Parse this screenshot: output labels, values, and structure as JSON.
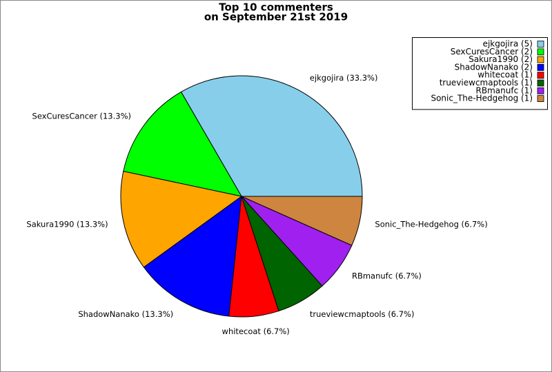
{
  "chart_data": {
    "type": "pie",
    "title": "Top 10 commenters",
    "subtitle": "on September 21st 2019",
    "categories": [
      "ejkgojira",
      "SexCuresCancer",
      "Sakura1990",
      "ShadowNanako",
      "whitecoat",
      "trueviewcmaptools",
      "RBmanufc",
      "Sonic_The-Hedgehog"
    ],
    "values": [
      5,
      2,
      2,
      2,
      1,
      1,
      1,
      1
    ],
    "value_labels": [
      "ejkgojira (33.3%)",
      "SexCuresCancer (13.3%)",
      "Sakura1990 (13.3%)",
      "ShadowNanako (13.3%)",
      "whitecoat (6.7%)",
      "trueviewcmaptools (6.7%)",
      "RBmanufc (6.7%)",
      "Sonic_The-Hedgehog (6.7%)"
    ],
    "legend_labels": [
      "ejkgojira (5)",
      "SexCuresCancer (2)",
      "Sakura1990 (2)",
      "ShadowNanako (2)",
      "whitecoat (1)",
      "trueviewcmaptools (1)",
      "RBmanufc (1)",
      "Sonic_The-Hedgehog (1)"
    ],
    "colors": [
      "#87ceeb",
      "#00ff00",
      "#ffa500",
      "#0000ff",
      "#ff0000",
      "#006400",
      "#a020f0",
      "#cd853f"
    ],
    "legend": "upper right"
  }
}
